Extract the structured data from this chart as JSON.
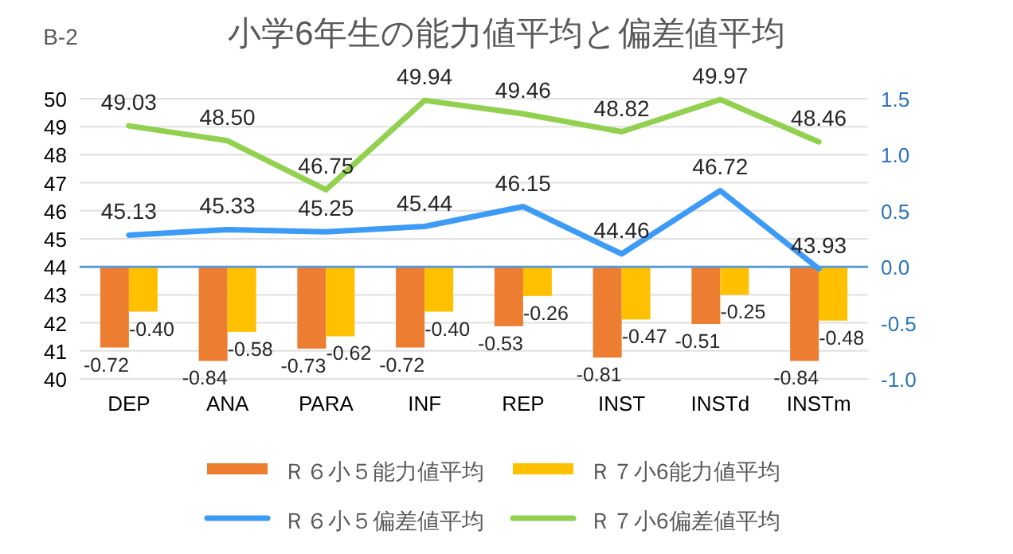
{
  "chart_data": {
    "type": "bar",
    "title": "小学6年生の能力値平均と偏差値平均",
    "annotations": [
      "B-2"
    ],
    "categories": [
      "DEP",
      "ANA",
      "PARA",
      "INF",
      "REP",
      "INST",
      "INSTd",
      "INSTm"
    ],
    "series": [
      {
        "name": "Ｒ６小５能力値平均",
        "axis": "y2",
        "color": "#ed7d31",
        "values": [
          -0.72,
          -0.84,
          -0.73,
          -0.72,
          -0.53,
          -0.81,
          -0.51,
          -0.84
        ],
        "value_labels": [
          "-0.72",
          "-0.84",
          "-0.73",
          "-0.72",
          "-0.53",
          "-0.81",
          "-0.51",
          "-0.84"
        ]
      },
      {
        "name": "Ｒ７小6能力値平均",
        "axis": "y2",
        "color": "#ffc000",
        "values": [
          -0.4,
          -0.58,
          -0.62,
          -0.4,
          -0.26,
          -0.47,
          -0.25,
          -0.48
        ],
        "value_labels": [
          "-0.40",
          "-0.58",
          "-0.62",
          "-0.40",
          "-0.26",
          "-0.47",
          "-0.25",
          "-0.48"
        ]
      },
      {
        "name": "Ｒ６小５偏差値平均",
        "type": "line",
        "color": "#3d9bf5",
        "values": [
          45.13,
          45.33,
          45.25,
          45.44,
          46.15,
          44.46,
          46.72,
          43.93
        ],
        "value_labels": [
          "45.13",
          "45.33",
          "45.25",
          "45.44",
          "46.15",
          "44.46",
          "46.72",
          "43.93"
        ]
      },
      {
        "name": "Ｒ７小6偏差値平均",
        "type": "line",
        "color": "#92d050",
        "values": [
          49.03,
          48.5,
          46.75,
          49.94,
          49.46,
          48.82,
          49.97,
          48.46
        ],
        "value_labels": [
          "49.03",
          "48.50",
          "46.75",
          "49.94",
          "49.46",
          "48.82",
          "49.97",
          "48.46"
        ]
      }
    ],
    "ylim": [
      40,
      50
    ],
    "yticks": [
      40,
      41,
      42,
      43,
      44,
      45,
      46,
      47,
      48,
      49,
      50
    ],
    "y2lim": [
      -1,
      1.5
    ],
    "y2ticks": [
      {
        "value": -1,
        "label": "-1.0"
      },
      {
        "value": -0.5,
        "label": "-0.5"
      },
      {
        "value": 0,
        "label": "0.0"
      },
      {
        "value": 0.5,
        "label": "0.5"
      },
      {
        "value": 1,
        "label": "1.0"
      },
      {
        "value": 1.5,
        "label": "1.5"
      }
    ],
    "ref_lines": [
      {
        "axis": "y2",
        "value": 0,
        "color": "#5b9bd5"
      }
    ],
    "grid": "y",
    "legend": "bottom",
    "marker": "none",
    "line_style": "solid"
  }
}
